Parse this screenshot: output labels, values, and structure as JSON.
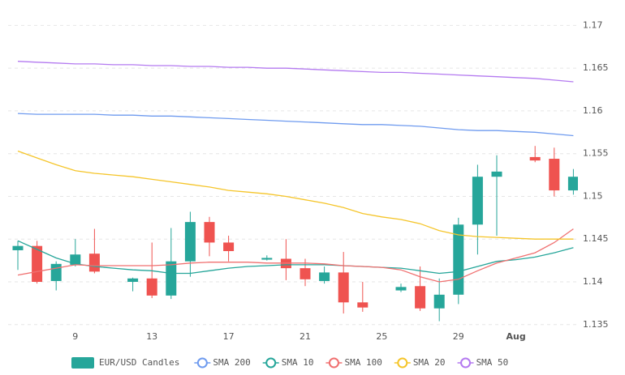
{
  "chart_data": {
    "type": "candlestick",
    "candle_name": "EUR/USD Candles",
    "up_color": "#26a69a",
    "down_color": "#ef5350",
    "categories": [
      null,
      null,
      null,
      "9",
      null,
      null,
      null,
      "13",
      null,
      null,
      null,
      "17",
      null,
      null,
      null,
      "21",
      null,
      null,
      null,
      "25",
      null,
      null,
      null,
      "29",
      null,
      null,
      "Aug",
      null,
      null,
      null
    ],
    "open": [
      1.1437,
      1.1442,
      1.1401,
      1.142,
      1.1433,
      null,
      1.14,
      1.1404,
      1.1384,
      1.1424,
      1.147,
      1.1446,
      null,
      1.1426,
      1.1427,
      1.1416,
      1.1401,
      1.1411,
      1.1376,
      null,
      1.139,
      1.1395,
      1.1369,
      1.1385,
      1.1467,
      1.1523,
      null,
      1.1546,
      1.1544,
      1.1507
    ],
    "high": [
      1.1448,
      1.1448,
      1.1424,
      1.145,
      1.1462,
      null,
      1.1405,
      1.1446,
      1.1463,
      1.1482,
      1.1476,
      1.1454,
      null,
      1.1431,
      1.145,
      1.1427,
      1.1418,
      1.1435,
      1.14,
      null,
      1.1398,
      1.1418,
      1.1404,
      1.1475,
      1.1537,
      1.1548,
      null,
      1.1559,
      1.1557,
      1.1532
    ],
    "low": [
      1.1414,
      1.1398,
      1.139,
      1.1418,
      1.141,
      null,
      1.1389,
      1.1381,
      1.138,
      1.1406,
      1.143,
      1.1424,
      null,
      1.1425,
      1.1402,
      1.1395,
      1.1398,
      1.1363,
      1.1365,
      null,
      1.1388,
      1.1366,
      1.1354,
      1.1374,
      1.1432,
      1.1454,
      null,
      1.154,
      1.15,
      1.1502
    ],
    "close": [
      1.1442,
      1.14,
      1.1421,
      1.1432,
      1.1412,
      null,
      1.1404,
      1.1384,
      1.1424,
      1.147,
      1.1446,
      1.1436,
      null,
      1.1428,
      1.1416,
      1.1403,
      1.1411,
      1.1376,
      1.137,
      null,
      1.1394,
      1.1369,
      1.1385,
      1.1467,
      1.1523,
      1.1529,
      null,
      1.1542,
      1.1507,
      1.1523
    ],
    "series": [
      {
        "name": "SMA 200",
        "color": "#6f9bef",
        "values": [
          1.1597,
          1.1596,
          1.1596,
          1.1596,
          1.1596,
          1.1595,
          1.1595,
          1.1594,
          1.1594,
          1.1593,
          1.1592,
          1.1591,
          1.159,
          1.1589,
          1.1588,
          1.1587,
          1.1586,
          1.1585,
          1.1584,
          1.1584,
          1.1583,
          1.1582,
          1.158,
          1.1578,
          1.1577,
          1.1577,
          1.1576,
          1.1575,
          1.1573,
          1.1571
        ]
      },
      {
        "name": "SMA 10",
        "color": "#26a69a",
        "values": [
          1.1448,
          1.1438,
          1.1428,
          1.1421,
          1.1418,
          1.1416,
          1.1414,
          1.1413,
          1.141,
          1.141,
          1.1413,
          1.1416,
          1.1418,
          1.1419,
          1.142,
          1.142,
          1.142,
          1.1419,
          1.1418,
          1.1417,
          1.1416,
          1.1413,
          1.141,
          1.1412,
          1.1418,
          1.1424,
          1.1426,
          1.1429,
          1.1434,
          1.144
        ]
      },
      {
        "name": "SMA 100",
        "color": "#f07070",
        "values": [
          1.1408,
          1.1412,
          1.1416,
          1.142,
          1.1419,
          1.1419,
          1.1419,
          1.1419,
          1.142,
          1.1422,
          1.1423,
          1.1423,
          1.1423,
          1.1422,
          1.1422,
          1.1422,
          1.1421,
          1.1419,
          1.1418,
          1.1417,
          1.1414,
          1.1406,
          1.14,
          1.1403,
          1.1413,
          1.1422,
          1.1428,
          1.1434,
          1.1446,
          1.1462
        ]
      },
      {
        "name": "SMA 20",
        "color": "#f5c52a",
        "values": [
          1.1553,
          1.1545,
          1.1537,
          1.153,
          1.1527,
          1.1525,
          1.1523,
          1.152,
          1.1517,
          1.1514,
          1.1511,
          1.1507,
          1.1505,
          1.1503,
          1.15,
          1.1496,
          1.1492,
          1.1487,
          1.148,
          1.1476,
          1.1473,
          1.1468,
          1.146,
          1.1455,
          1.1453,
          1.1452,
          1.1451,
          1.145,
          1.145,
          1.145
        ]
      },
      {
        "name": "SMA 50",
        "color": "#b47af0",
        "values": [
          1.1658,
          1.1657,
          1.1656,
          1.1655,
          1.1655,
          1.1654,
          1.1654,
          1.1653,
          1.1653,
          1.1652,
          1.1652,
          1.1651,
          1.1651,
          1.165,
          1.165,
          1.1649,
          1.1648,
          1.1647,
          1.1646,
          1.1645,
          1.1645,
          1.1644,
          1.1643,
          1.1642,
          1.1641,
          1.164,
          1.1639,
          1.1638,
          1.1636,
          1.1634
        ]
      }
    ],
    "ylim": [
      1.1346,
      1.1725
    ],
    "yticks": [
      1.135,
      1.14,
      1.145,
      1.15,
      1.155,
      1.16,
      1.165,
      1.17
    ],
    "grid": true
  }
}
